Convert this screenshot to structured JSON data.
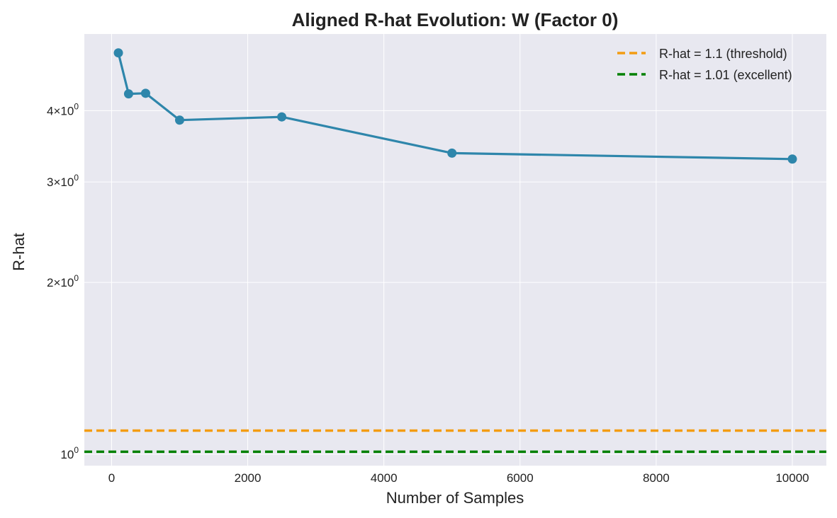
{
  "chart_data": {
    "type": "line",
    "title": "Aligned R-hat Evolution: W (Factor 0)",
    "xlabel": "Number of Samples",
    "ylabel": "R-hat",
    "xlim": [
      -400,
      10500
    ],
    "ylim": [
      0.955,
      5.45
    ],
    "yscale": "log",
    "grid": true,
    "legend_position": "top-right",
    "x_ticks": [
      0,
      2000,
      4000,
      6000,
      8000,
      10000
    ],
    "x_tick_labels": [
      "0",
      "2000",
      "4000",
      "6000",
      "8000",
      "10000"
    ],
    "y_ticks": [
      {
        "value": 4,
        "mantissa": "4",
        "base": "10",
        "exp": "0"
      },
      {
        "value": 3,
        "mantissa": "3",
        "base": "10",
        "exp": "0"
      },
      {
        "value": 2,
        "mantissa": "2",
        "base": "10",
        "exp": "0"
      },
      {
        "value": 1,
        "mantissa": "",
        "base": "10",
        "exp": "0"
      }
    ],
    "series": [
      {
        "name": "",
        "color": "#2e86ab",
        "x": [
          100,
          250,
          500,
          1000,
          2500,
          5000,
          10000
        ],
        "y": [
          5.05,
          4.28,
          4.29,
          3.85,
          3.9,
          3.37,
          3.29
        ]
      }
    ],
    "reference_lines": [
      {
        "label": "R-hat = 1.1 (threshold)",
        "value": 1.1,
        "color": "#f39c12"
      },
      {
        "label": "R-hat = 1.01 (excellent)",
        "value": 1.01,
        "color": "#008000"
      }
    ],
    "colors": {
      "plot_background": "#e8e8f0",
      "grid": "#ffffff"
    }
  }
}
